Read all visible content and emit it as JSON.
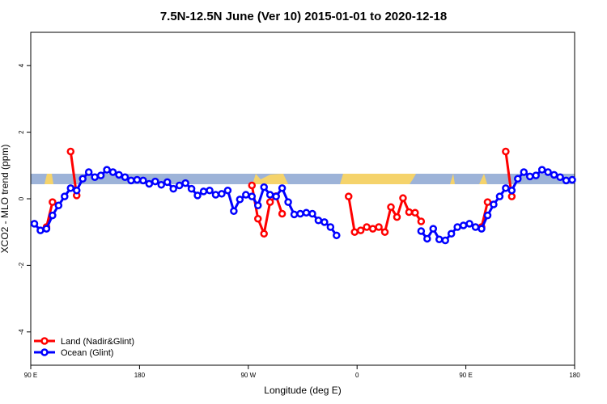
{
  "chart_data": {
    "type": "line",
    "title": "7.5N-12.5N June (Ver 10)   2015-01-01 to 2020-12-18",
    "x_label": "Longitude (deg E)",
    "y_label": "XCO2 - MLO trend (ppm)",
    "x": [
      93,
      98,
      103,
      108,
      113,
      118,
      123,
      128,
      133,
      138,
      143,
      148,
      153,
      158,
      163,
      168,
      173,
      178,
      183,
      188,
      193,
      198,
      203,
      208,
      213,
      218,
      223,
      228,
      233,
      238,
      243,
      248,
      253,
      258,
      263,
      268,
      273,
      278,
      283,
      288,
      293,
      298,
      303,
      308,
      313,
      318,
      323,
      328,
      333,
      338,
      343,
      348,
      353,
      358,
      363,
      368,
      373,
      378,
      383,
      388,
      393,
      398,
      403,
      408,
      413,
      418,
      423,
      428,
      433,
      438,
      443,
      448,
      453,
      458,
      463,
      468,
      473,
      478,
      483,
      488,
      493,
      498,
      503,
      508,
      513,
      518,
      523,
      528,
      533,
      538
    ],
    "series": [
      {
        "name": "Land (Nadir&Glint)",
        "color": "#ff0000",
        "values": [
          null,
          null,
          -0.85,
          -0.1,
          null,
          null,
          1.42,
          0.1,
          null,
          null,
          null,
          null,
          null,
          null,
          null,
          null,
          null,
          null,
          null,
          null,
          null,
          null,
          null,
          null,
          null,
          null,
          null,
          null,
          null,
          null,
          null,
          null,
          null,
          null,
          null,
          null,
          0.4,
          -0.6,
          -1.05,
          -0.1,
          0.08,
          -0.45,
          null,
          null,
          null,
          null,
          null,
          null,
          null,
          null,
          null,
          null,
          0.07,
          -1.0,
          -0.95,
          -0.85,
          -0.9,
          -0.85,
          -1.0,
          -0.25,
          -0.55,
          0.02,
          -0.4,
          -0.42,
          -0.68,
          null,
          null,
          null,
          null,
          null,
          null,
          null,
          null,
          null,
          -0.85,
          -0.1,
          null,
          null,
          1.42,
          0.07,
          null,
          null,
          null,
          null,
          null,
          null,
          null,
          null,
          null,
          null
        ]
      },
      {
        "name": "Ocean (Glint)",
        "color": "#0000ff",
        "values": [
          -0.75,
          -0.95,
          -0.9,
          -0.5,
          -0.2,
          0.07,
          0.32,
          0.25,
          0.6,
          0.8,
          0.65,
          0.7,
          0.87,
          0.8,
          0.72,
          0.65,
          0.55,
          0.57,
          0.55,
          0.45,
          0.52,
          0.42,
          0.5,
          0.3,
          0.4,
          0.47,
          0.3,
          0.1,
          0.22,
          0.25,
          0.12,
          0.15,
          0.25,
          -0.37,
          -0.02,
          0.12,
          0.07,
          -0.2,
          0.35,
          0.12,
          0.07,
          0.32,
          -0.1,
          -0.47,
          -0.45,
          -0.42,
          -0.45,
          -0.65,
          -0.7,
          -0.85,
          -1.1,
          null,
          null,
          null,
          null,
          null,
          null,
          null,
          null,
          null,
          null,
          null,
          null,
          null,
          -0.97,
          -1.2,
          -0.9,
          -1.22,
          -1.25,
          -1.05,
          -0.85,
          -0.8,
          -0.75,
          -0.85,
          -0.9,
          -0.5,
          -0.17,
          0.07,
          0.32,
          0.25,
          0.6,
          0.8,
          0.67,
          0.7,
          0.87,
          0.8,
          0.72,
          0.65,
          0.55,
          0.57
        ]
      }
    ],
    "xlim": [
      90,
      540
    ],
    "xticks": [
      {
        "value": 90,
        "label": "90 E"
      },
      {
        "value": 180,
        "label": "180"
      },
      {
        "value": 270,
        "label": "90 W"
      },
      {
        "value": 360,
        "label": "0"
      },
      {
        "value": 450,
        "label": "90 E"
      },
      {
        "value": 540,
        "label": "180"
      }
    ],
    "ylim": [
      -5,
      5
    ],
    "yticks": [
      -4,
      -2,
      0,
      2,
      4
    ],
    "legend": "bottom-left"
  }
}
